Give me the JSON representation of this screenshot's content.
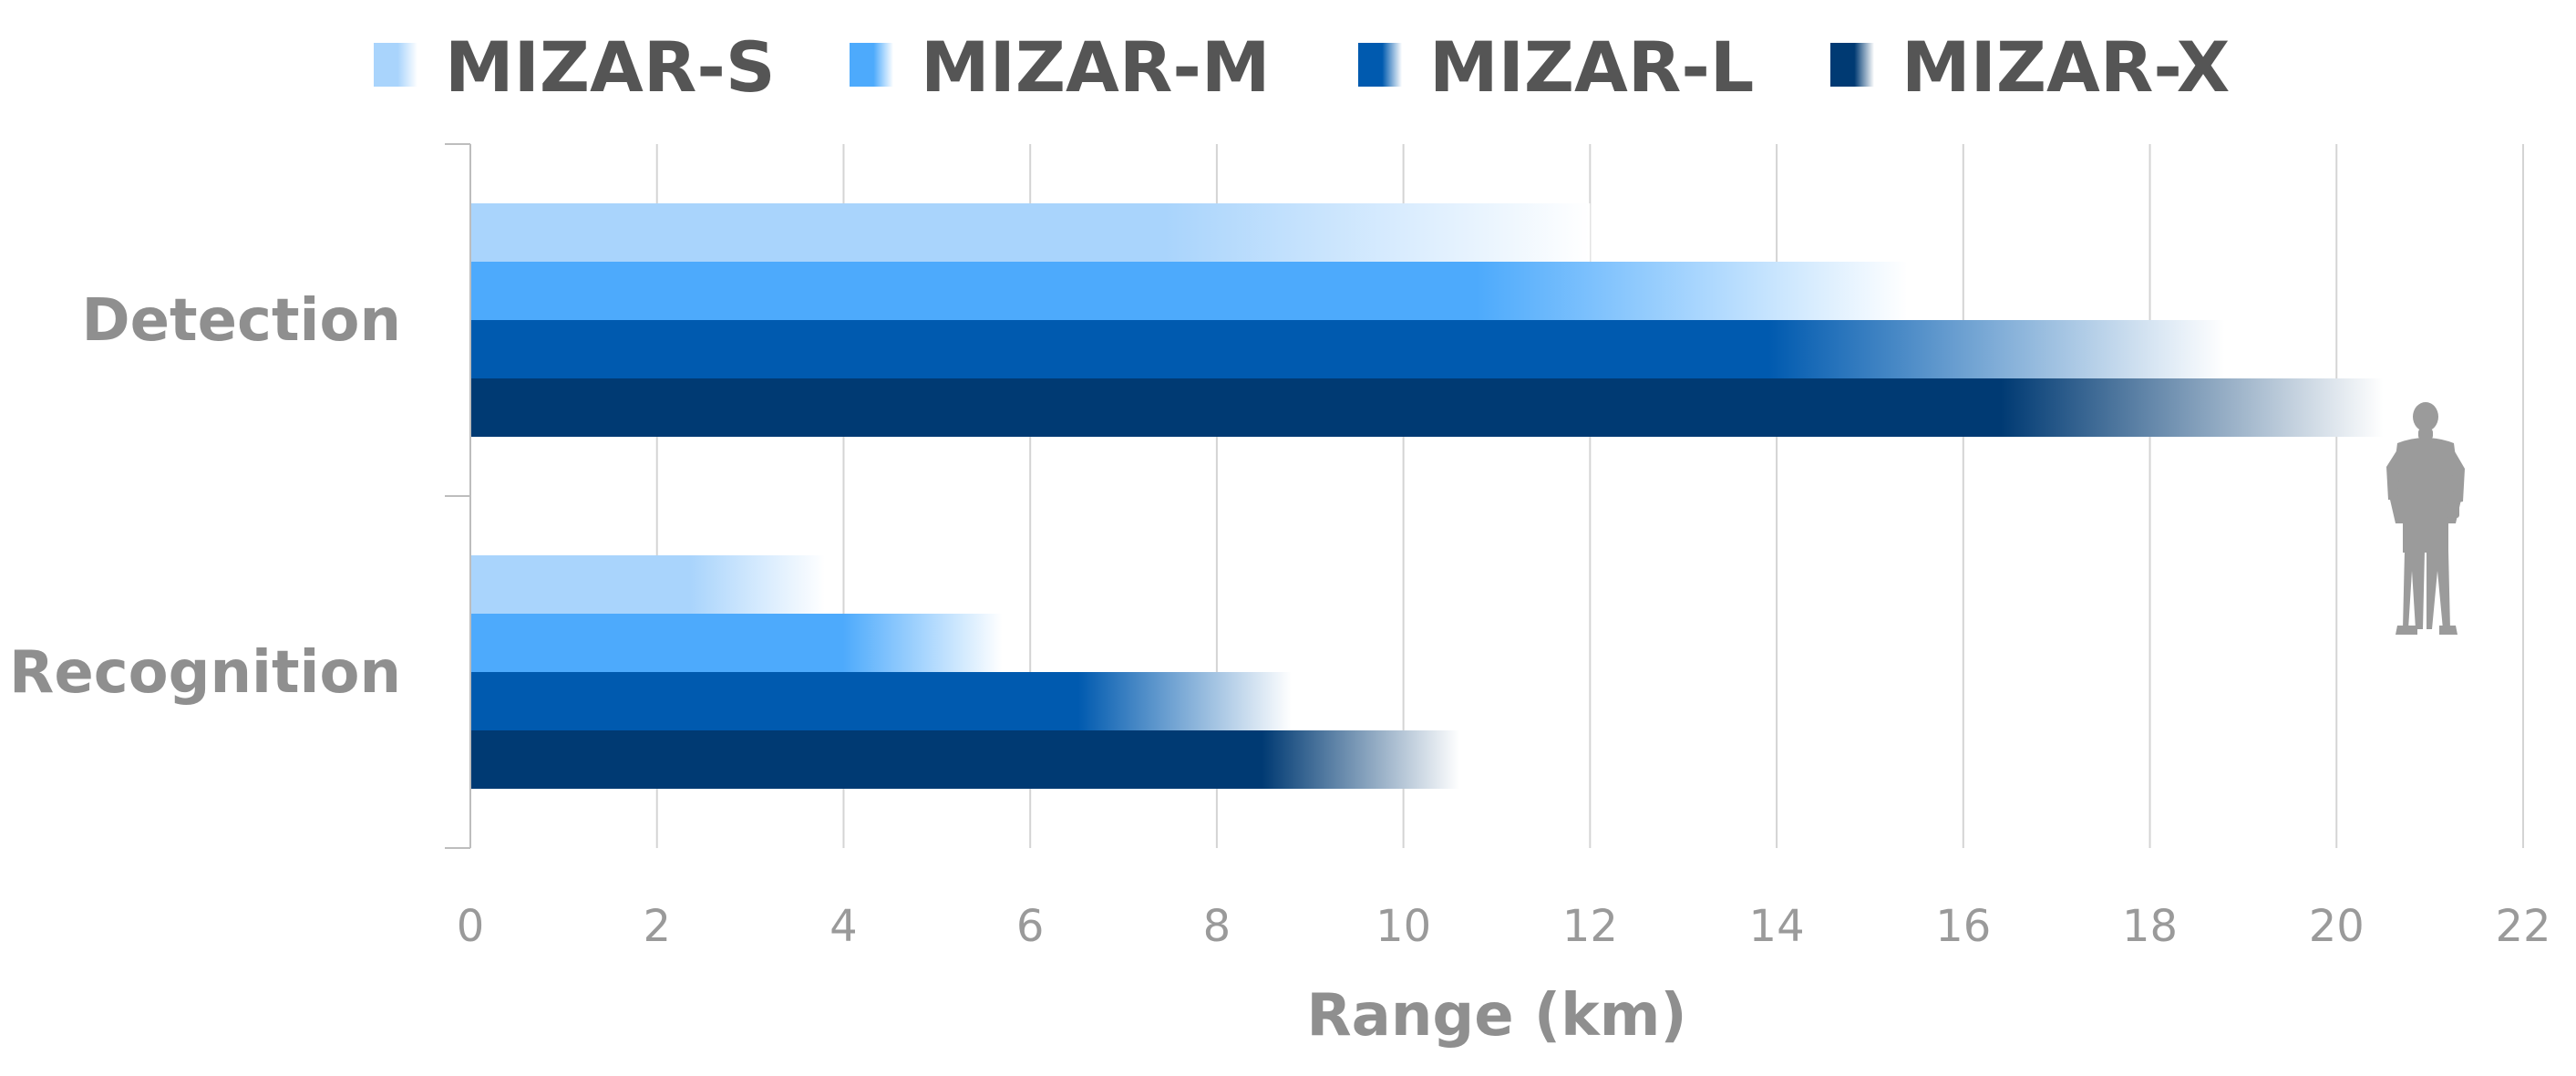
{
  "chart_data": {
    "type": "bar",
    "orientation": "horizontal",
    "categories": [
      "Detection",
      "Recognition"
    ],
    "series": [
      {
        "name": "MIZAR-S",
        "color": "#a9d4fc",
        "values": [
          12.0,
          3.8
        ]
      },
      {
        "name": "MIZAR-M",
        "color": "#4daafc",
        "values": [
          15.4,
          5.7
        ]
      },
      {
        "name": "MIZAR-L",
        "color": "#005aaf",
        "values": [
          18.8,
          8.8
        ]
      },
      {
        "name": "MIZAR-X",
        "color": "#003a73",
        "values": [
          20.5,
          10.6
        ]
      }
    ],
    "xlabel": "Range (km)",
    "xlim": [
      0,
      22
    ],
    "xticks": [
      0,
      2,
      4,
      6,
      8,
      10,
      12,
      14,
      16,
      18,
      20,
      22
    ],
    "grid": "vertical",
    "legend": "top",
    "bar_style": "gradient-fade-to-white",
    "annotation_icon": "person-silhouette-icon"
  }
}
